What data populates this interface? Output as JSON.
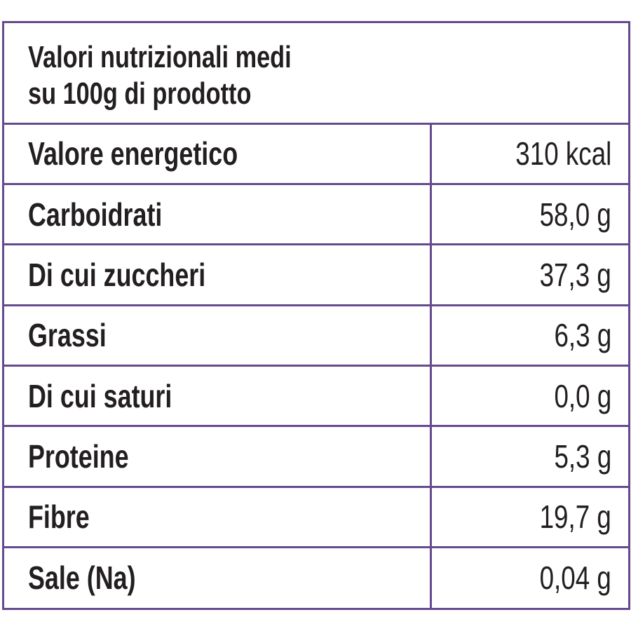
{
  "header": {
    "title": [
      "Valori nutrizionali medi",
      "su 100g di prodotto"
    ]
  },
  "table": {
    "rows": [
      [
        "Valore energetico",
        "310 kcal"
      ],
      [
        "Carboidrati",
        "58,0 g"
      ],
      [
        "Di cui zuccheri",
        "37,3 g"
      ],
      [
        "Grassi",
        "6,3 g"
      ],
      [
        "Di cui saturi",
        "0,0 g"
      ],
      [
        "Proteine",
        "5,3 g"
      ],
      [
        "Fibre",
        "19,7 g"
      ],
      [
        "Sale (Na)",
        "0,04 g"
      ]
    ]
  }
}
